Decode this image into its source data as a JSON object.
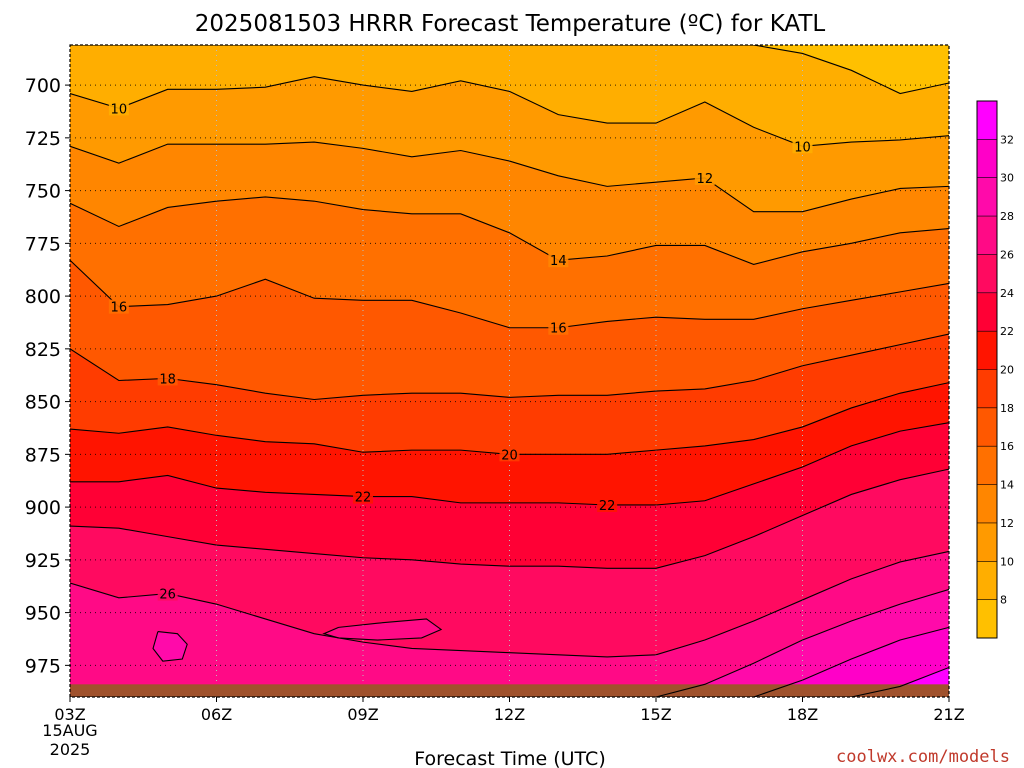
{
  "chart_data": {
    "type": "heatmap",
    "title": "2025081503 HRRR Forecast Temperature (ºC) for KATL",
    "xlabel": "Forecast Time (UTC)",
    "ylabel": "",
    "x_ticks": [
      "03Z",
      "06Z",
      "09Z",
      "12Z",
      "15Z",
      "18Z",
      "21Z"
    ],
    "x_tick_hours": [
      3,
      6,
      9,
      12,
      15,
      18,
      21
    ],
    "x_date_lines": [
      "15AUG",
      "2025"
    ],
    "x_range": [
      3,
      21
    ],
    "y_ticks": [
      700,
      725,
      750,
      775,
      800,
      825,
      850,
      875,
      900,
      925,
      950,
      975
    ],
    "y_range": [
      681,
      990
    ],
    "y_inverted": true,
    "ground_level": 984,
    "grid": true,
    "colorbar": {
      "placement": "right",
      "tick_labels": [
        "8",
        "10",
        "12",
        "14",
        "16",
        "18",
        "20",
        "22",
        "24",
        "26",
        "28",
        "30",
        "32"
      ],
      "levels": [
        6,
        8,
        10,
        12,
        14,
        16,
        18,
        20,
        22,
        24,
        26,
        28,
        30,
        32,
        34
      ],
      "colors": [
        "#FFC000",
        "#FFAE00",
        "#FF9A00",
        "#FF8600",
        "#FF7000",
        "#FF5800",
        "#FF3C00",
        "#FF1400",
        "#FF0035",
        "#FF0A60",
        "#FF0A86",
        "#FF0AAA",
        "#FF00C8",
        "#FF00FF"
      ]
    },
    "hours": [
      3,
      4,
      5,
      6,
      7,
      8,
      9,
      10,
      11,
      12,
      13,
      14,
      15,
      16,
      17,
      18,
      19,
      20,
      21
    ],
    "isotherms": [
      {
        "value": 8,
        "label": "",
        "pressure": [
          681,
          681,
          681,
          681,
          681,
          681,
          681,
          681,
          681,
          681,
          681,
          681,
          681,
          681,
          681,
          685,
          693,
          704,
          699
        ]
      },
      {
        "value": 10,
        "label": "10",
        "pressure": [
          704,
          711,
          702,
          702,
          701,
          696,
          700,
          703,
          698,
          703,
          714,
          718,
          718,
          708,
          720,
          729,
          727,
          726,
          724
        ]
      },
      {
        "value": 12,
        "label": "12",
        "pressure": [
          729,
          737,
          728,
          728,
          728,
          727,
          730,
          734,
          731,
          736,
          743,
          748,
          746,
          744,
          760,
          760,
          754,
          749,
          748
        ]
      },
      {
        "value": 14,
        "label": "14",
        "pressure": [
          756,
          767,
          758,
          755,
          753,
          755,
          759,
          761,
          761,
          770,
          783,
          781,
          776,
          776,
          785,
          779,
          775,
          770,
          768
        ]
      },
      {
        "value": 16,
        "label": "16",
        "pressure": [
          783,
          805,
          804,
          800,
          792,
          801,
          802,
          802,
          808,
          815,
          815,
          812,
          810,
          811,
          811,
          806,
          802,
          798,
          794
        ]
      },
      {
        "value": 18,
        "label": "18",
        "pressure": [
          825,
          840,
          839,
          842,
          846,
          849,
          847,
          846,
          846,
          848,
          847,
          847,
          845,
          844,
          840,
          833,
          828,
          823,
          818
        ]
      },
      {
        "value": 20,
        "label": "20",
        "pressure": [
          863,
          865,
          862,
          866,
          869,
          870,
          874,
          873,
          873,
          875,
          875,
          875,
          873,
          871,
          868,
          862,
          853,
          846,
          841
        ]
      },
      {
        "value": 22,
        "label": "22",
        "pressure": [
          888,
          888,
          885,
          891,
          893,
          894,
          895,
          895,
          898,
          898,
          898,
          899,
          899,
          897,
          889,
          881,
          871,
          864,
          860
        ]
      },
      {
        "value": 24,
        "label": "",
        "pressure": [
          909,
          910,
          914,
          918,
          920,
          922,
          924,
          925,
          927,
          928,
          928,
          929,
          929,
          923,
          914,
          904,
          894,
          887,
          882
        ]
      },
      {
        "value": 26,
        "label": "26",
        "pressure": [
          936,
          943,
          941,
          946,
          953,
          960,
          964,
          967,
          968,
          969,
          970,
          971,
          970,
          963,
          954,
          944,
          934,
          926,
          921
        ]
      },
      {
        "value": 28,
        "label": "",
        "pressure": [
          990,
          990,
          990,
          990,
          990,
          990,
          990,
          990,
          990,
          990,
          990,
          990,
          990,
          984,
          974,
          963,
          954,
          946,
          939
        ]
      },
      {
        "value": 30,
        "label": "",
        "pressure": [
          990,
          990,
          990,
          990,
          990,
          990,
          990,
          990,
          990,
          990,
          990,
          990,
          990,
          990,
          990,
          982,
          972,
          963,
          957
        ]
      },
      {
        "value": 32,
        "label": "",
        "pressure": [
          990,
          990,
          990,
          990,
          990,
          990,
          990,
          990,
          990,
          990,
          990,
          990,
          990,
          990,
          990,
          990,
          990,
          985,
          976
        ]
      }
    ],
    "isotherm_labels": [
      {
        "value": "10",
        "hour": 4,
        "pressure": 711
      },
      {
        "value": "10",
        "hour": 18,
        "pressure": 729
      },
      {
        "value": "12",
        "hour": 16,
        "pressure": 744
      },
      {
        "value": "14",
        "hour": 13,
        "pressure": 783
      },
      {
        "value": "16",
        "hour": 4,
        "pressure": 805
      },
      {
        "value": "16",
        "hour": 13,
        "pressure": 815
      },
      {
        "value": "18",
        "hour": 5,
        "pressure": 839
      },
      {
        "value": "20",
        "hour": 12,
        "pressure": 875
      },
      {
        "value": "22",
        "hour": 9,
        "pressure": 895
      },
      {
        "value": "22",
        "hour": 14,
        "pressure": 899
      },
      {
        "value": "26",
        "hour": 5,
        "pressure": 941
      }
    ],
    "contour_loops": [
      {
        "value": 28,
        "hour": [
          4.8,
          5.2,
          5.4,
          5.3,
          4.9,
          4.7,
          4.8
        ],
        "pressure": [
          959,
          960,
          965,
          972,
          973,
          967,
          959
        ]
      },
      {
        "value": 26,
        "hour": [
          8.5,
          9.3,
          10.3,
          10.6,
          10.2,
          9.3,
          8.5,
          8.2,
          8.5
        ],
        "pressure": [
          957,
          955,
          953,
          958,
          962,
          963,
          962,
          960,
          957
        ]
      }
    ]
  },
  "watermark": "coolwx.com/models"
}
